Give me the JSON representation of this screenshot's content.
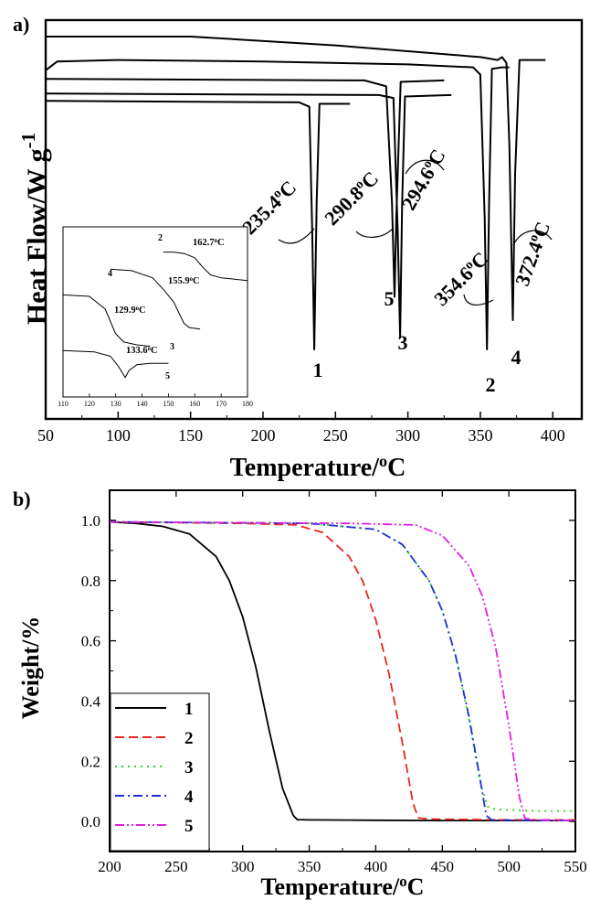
{
  "chart_data": [
    {
      "panel_label": "a)",
      "type": "line",
      "xlabel": "Temperature/°C",
      "ylabel": "Heat Flow/W g-1",
      "xlim": [
        50,
        420
      ],
      "x_ticks": [
        50,
        100,
        150,
        200,
        250,
        300,
        350,
        400
      ],
      "y_ticks_shown": false,
      "series": [
        {
          "name": "1",
          "baseline": 0.84,
          "x": [
            50,
            225,
            232,
            234,
            235.4,
            237,
            239,
            260
          ],
          "y": [
            0.85,
            0.845,
            0.83,
            0.4,
            0.0,
            0.5,
            0.84,
            0.84
          ]
        },
        {
          "name": "2",
          "baseline": 0.96,
          "x": [
            50,
            58,
            100,
            200,
            300,
            345,
            350,
            353,
            354.6,
            356,
            358,
            365,
            370
          ],
          "y": [
            0.955,
            0.985,
            0.99,
            0.985,
            0.975,
            0.965,
            0.94,
            0.45,
            0.0,
            0.5,
            0.96,
            0.965,
            0.965
          ]
        },
        {
          "name": "3",
          "baseline": 0.87,
          "x": [
            50,
            280,
            290,
            293,
            294.6,
            296,
            298,
            330
          ],
          "y": [
            0.875,
            0.87,
            0.86,
            0.4,
            0.04,
            0.5,
            0.865,
            0.87
          ]
        },
        {
          "name": "4",
          "baseline": 0.99,
          "x": [
            50,
            150,
            250,
            350,
            362,
            365,
            368,
            370,
            372.4,
            374,
            377,
            395
          ],
          "y": [
            1.07,
            1.07,
            1.04,
            1.0,
            0.99,
            1.0,
            0.98,
            0.7,
            0.1,
            0.6,
            0.99,
            0.99
          ]
        },
        {
          "name": "5",
          "baseline": 0.92,
          "x": [
            50,
            270,
            285,
            289,
            290.8,
            292,
            295,
            325
          ],
          "y": [
            0.925,
            0.92,
            0.9,
            0.5,
            0.18,
            0.45,
            0.915,
            0.92
          ]
        }
      ],
      "annotations": [
        {
          "text": "235.4°C"
        },
        {
          "text": "290.8°C"
        },
        {
          "text": "294.6°C"
        },
        {
          "text": "354.6°C"
        },
        {
          "text": "372.4°C"
        }
      ],
      "curve_labels": [
        "1",
        "2",
        "3",
        "4",
        "5"
      ],
      "inset": {
        "xlim": [
          110,
          180
        ],
        "x_ticks": [
          110,
          120,
          130,
          140,
          150,
          160,
          170,
          180
        ],
        "series": [
          {
            "name": "2",
            "x": [
              148,
              152,
              156,
              160,
              162.7,
              166,
              170,
              175,
              180
            ],
            "y": [
              0.9,
              0.9,
              0.89,
              0.86,
              0.8,
              0.74,
              0.72,
              0.71,
              0.7
            ]
          },
          {
            "name": "4",
            "x": [
              128,
              136,
              144,
              148,
              152,
              155.9,
              158,
              162
            ],
            "y": [
              0.78,
              0.77,
              0.72,
              0.64,
              0.55,
              0.4,
              0.37,
              0.36
            ]
          },
          {
            "name": "3",
            "x": [
              110,
              120,
              126,
              129.9,
              133,
              138,
              143
            ],
            "y": [
              0.6,
              0.59,
              0.5,
              0.33,
              0.27,
              0.25,
              0.24
            ]
          },
          {
            "name": "5",
            "x": [
              110,
              122,
              128,
              131,
              133.6,
              135,
              138,
              143,
              150
            ],
            "y": [
              0.21,
              0.2,
              0.17,
              0.1,
              0.02,
              0.07,
              0.11,
              0.12,
              0.12
            ]
          }
        ],
        "annotations": [
          {
            "text": "162.7°C"
          },
          {
            "text": "155.9°C"
          },
          {
            "text": "129.9°C"
          },
          {
            "text": "133.6°C"
          }
        ],
        "curve_labels": [
          "2",
          "4",
          "3",
          "5"
        ]
      }
    },
    {
      "panel_label": "b)",
      "type": "line",
      "xlabel": "Temperature/°C",
      "ylabel": "Weight/%",
      "xlim": [
        200,
        550
      ],
      "ylim": [
        -0.1,
        1.1
      ],
      "x_ticks": [
        200,
        250,
        300,
        350,
        400,
        450,
        500,
        550
      ],
      "y_ticks": [
        0.0,
        0.2,
        0.4,
        0.6,
        0.8,
        1.0
      ],
      "legend_position": "bottom-left",
      "series": [
        {
          "name": "1",
          "color": "#000000",
          "dash": "solid",
          "x": [
            200,
            220,
            240,
            260,
            280,
            290,
            300,
            310,
            320,
            330,
            338,
            341,
            350,
            400,
            450,
            500,
            550
          ],
          "y": [
            0.995,
            0.99,
            0.98,
            0.955,
            0.88,
            0.8,
            0.68,
            0.51,
            0.3,
            0.11,
            0.02,
            0.006,
            0.005,
            0.004,
            0.003,
            0.003,
            0.003
          ]
        },
        {
          "name": "2",
          "color": "#e8251f",
          "dash": "dashed",
          "x": [
            200,
            300,
            340,
            360,
            380,
            390,
            400,
            410,
            420,
            428,
            432,
            440,
            500,
            550
          ],
          "y": [
            0.995,
            0.99,
            0.985,
            0.96,
            0.88,
            0.8,
            0.67,
            0.49,
            0.26,
            0.06,
            0.012,
            0.008,
            0.005,
            0.005
          ]
        },
        {
          "name": "3",
          "color": "#22dd22",
          "dash": "dotted",
          "x": [
            200,
            350,
            400,
            420,
            440,
            450,
            460,
            470,
            478,
            484,
            490,
            520,
            550
          ],
          "y": [
            0.995,
            0.99,
            0.97,
            0.92,
            0.8,
            0.7,
            0.55,
            0.34,
            0.14,
            0.05,
            0.04,
            0.035,
            0.035
          ]
        },
        {
          "name": "4",
          "color": "#1f2fd8",
          "dash": "dashdot",
          "x": [
            200,
            350,
            400,
            420,
            440,
            450,
            460,
            470,
            478,
            483,
            487,
            520,
            550
          ],
          "y": [
            0.995,
            0.99,
            0.97,
            0.92,
            0.8,
            0.7,
            0.55,
            0.35,
            0.15,
            0.02,
            0.005,
            0.003,
            0.003
          ]
        },
        {
          "name": "5",
          "color": "#e020e0",
          "dash": "dashdotdot",
          "x": [
            200,
            380,
            430,
            450,
            470,
            480,
            490,
            500,
            508,
            512,
            520,
            550
          ],
          "y": [
            0.995,
            0.99,
            0.985,
            0.95,
            0.85,
            0.75,
            0.58,
            0.32,
            0.08,
            0.01,
            0.005,
            0.003
          ]
        }
      ]
    }
  ]
}
